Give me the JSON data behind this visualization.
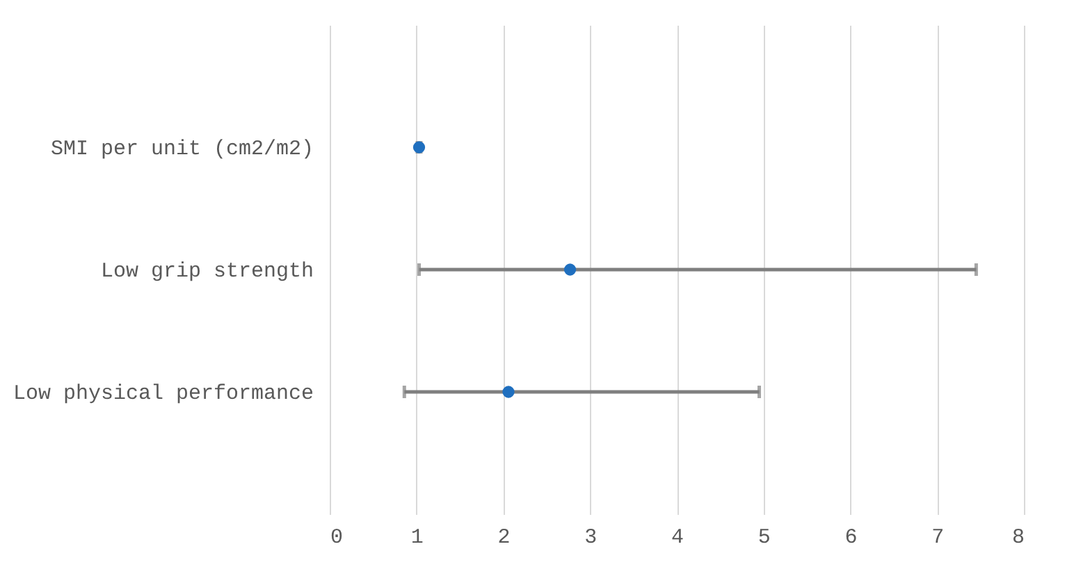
{
  "chart_data": {
    "type": "scatter",
    "orientation": "horizontal",
    "categories": [
      "SMI per unit (cm2/m2)",
      "Low grip strength",
      "Low physical performance"
    ],
    "values": [
      1.03,
      2.77,
      2.06
    ],
    "errors": [
      [
        1.01,
        1.05
      ],
      [
        1.03,
        7.45
      ],
      [
        0.86,
        4.95
      ]
    ],
    "color": "#1f6fbf",
    "marker": "circle",
    "xlim": [
      0,
      8
    ],
    "xticks": [
      0,
      1,
      2,
      3,
      4,
      5,
      6,
      7,
      8
    ],
    "grid": "x"
  }
}
